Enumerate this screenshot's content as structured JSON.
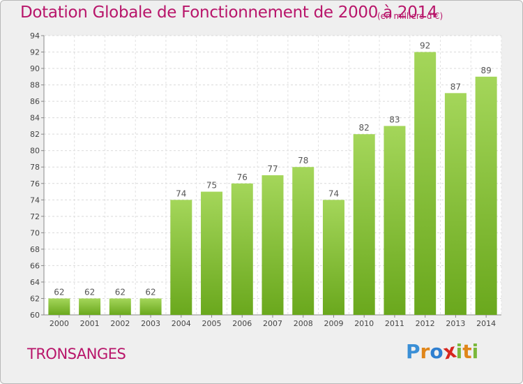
{
  "title": "Dotation Globale de Fonctionnement de 2000 à 2014",
  "subtitle": "(en milliers d'€)",
  "commune": "TRONSANGES",
  "brand": {
    "letters": [
      "P",
      "r",
      "o",
      "x",
      "i",
      "t",
      "i"
    ],
    "colors": [
      "#3a8fd6",
      "#e0861a",
      "#2f7fd0",
      "#d7261e",
      "#7ab83a",
      "#e0861a",
      "#7ab83a"
    ]
  },
  "colors": {
    "bar_light": "#a4d65a",
    "bar_dark": "#6aa81d",
    "accent": "#b8156a",
    "background": "#efefef"
  },
  "chart_data": {
    "type": "bar",
    "categories": [
      "2000",
      "2001",
      "2002",
      "2003",
      "2004",
      "2005",
      "2006",
      "2007",
      "2008",
      "2009",
      "2010",
      "2011",
      "2012",
      "2013",
      "2014"
    ],
    "values": [
      62,
      62,
      62,
      62,
      74,
      75,
      76,
      77,
      78,
      74,
      82,
      83,
      92,
      87,
      89
    ],
    "title": "Dotation Globale de Fonctionnement de 2000 à 2014",
    "subtitle": "(en milliers d'€)",
    "xlabel": "",
    "ylabel": "",
    "ylim": [
      60,
      94
    ],
    "yticks": [
      60,
      62,
      64,
      66,
      68,
      70,
      72,
      74,
      76,
      78,
      80,
      82,
      84,
      86,
      88,
      90,
      92,
      94
    ],
    "grid": true,
    "data_labels": true
  }
}
